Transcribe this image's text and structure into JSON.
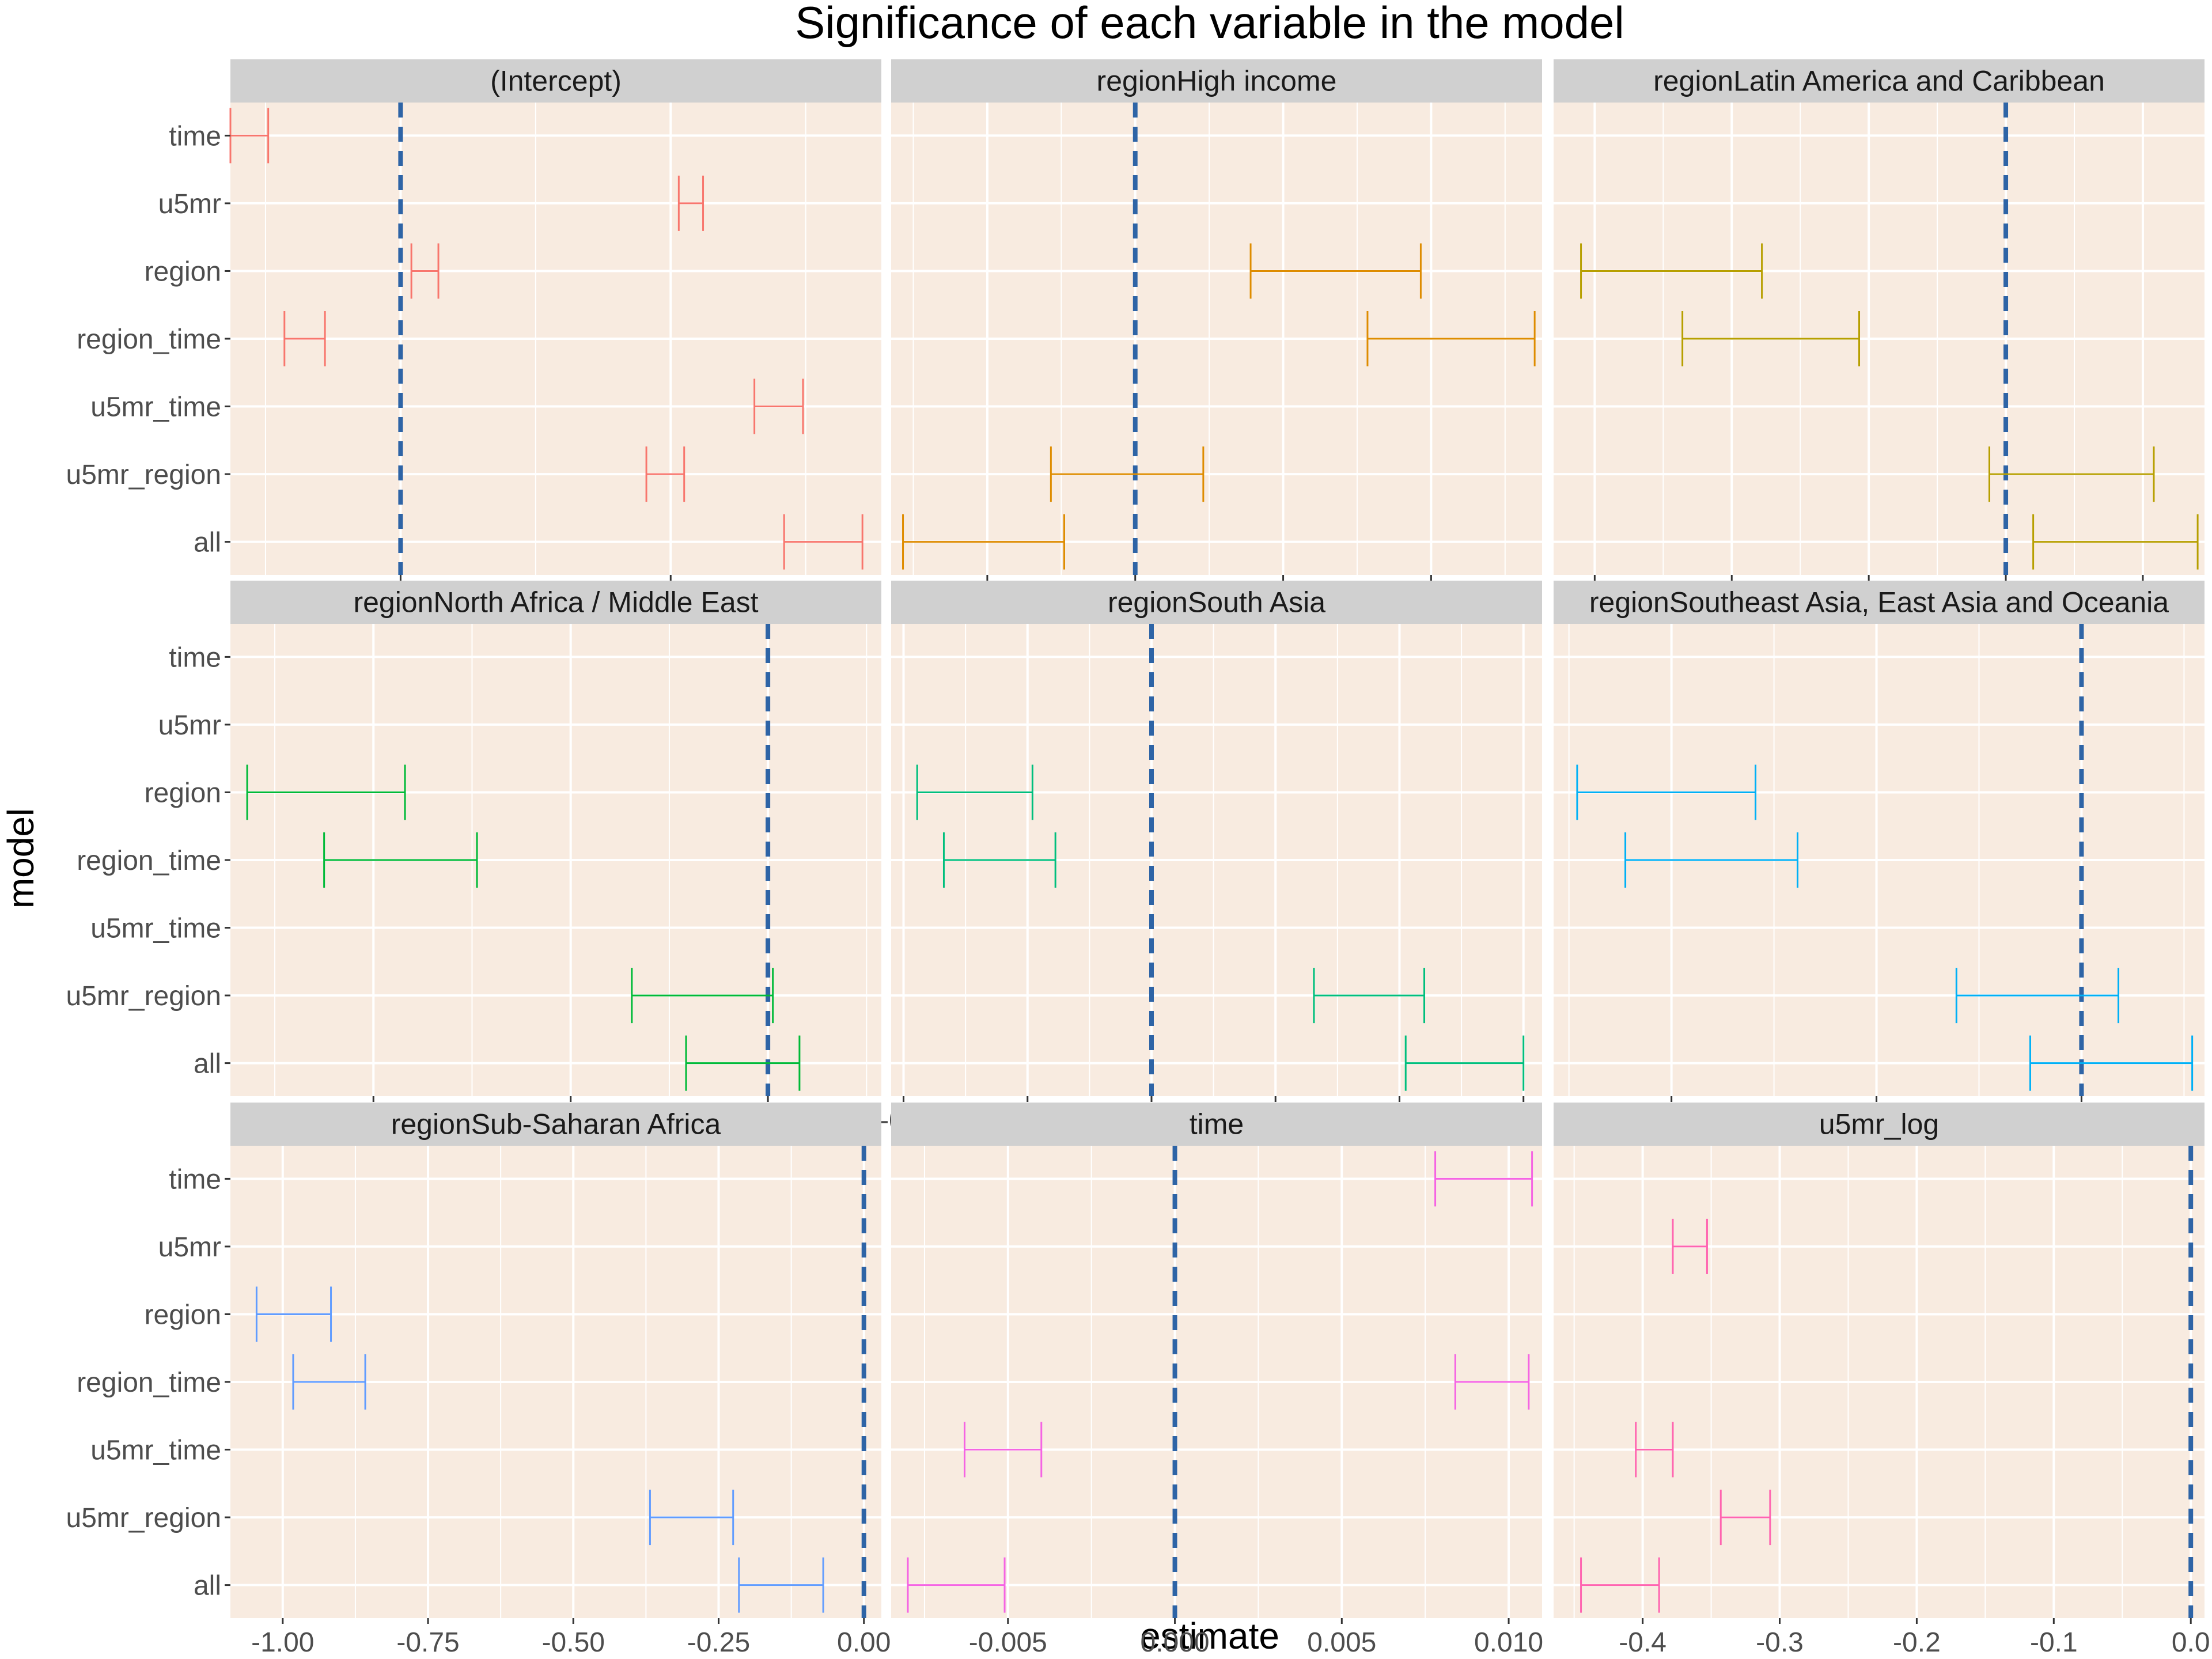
{
  "chart_data": {
    "type": "errorbar-facets",
    "title": "Significance of each variable in the model",
    "xlabel": "estimate",
    "ylabel": "model",
    "models": [
      "time",
      "u5mr",
      "region",
      "region_time",
      "u5mr_time",
      "u5mr_region",
      "all"
    ],
    "reference_line": 0,
    "reference_line_color": "#2E64A6",
    "panel_background": "#F8EBE0",
    "strip_background": "#D0D0D0",
    "grid": true,
    "legend": "none",
    "facets": [
      {
        "name": "(Intercept)",
        "color": "#F8766D",
        "xlim": [
          -0.63,
          1.78
        ],
        "ticks": [
          {
            "v": 0,
            "label": "0"
          },
          {
            "v": 1,
            "label": "1"
          }
        ],
        "bars": [
          {
            "model": "time",
            "low": -0.63,
            "high": -0.49
          },
          {
            "model": "u5mr",
            "low": 1.03,
            "high": 1.12
          },
          {
            "model": "region",
            "low": 0.04,
            "high": 0.14
          },
          {
            "model": "region_time",
            "low": -0.43,
            "high": -0.28
          },
          {
            "model": "u5mr_time",
            "low": 1.31,
            "high": 1.49
          },
          {
            "model": "u5mr_region",
            "low": 0.91,
            "high": 1.05
          },
          {
            "model": "all",
            "low": 1.42,
            "high": 1.71
          }
        ]
      },
      {
        "name": "regionHigh income",
        "color": "#DE8C00",
        "xlim": [
          -0.165,
          0.275
        ],
        "ticks": [
          {
            "v": -0.1,
            "label": "-0.1"
          },
          {
            "v": 0,
            "label": "0.0"
          },
          {
            "v": 0.1,
            "label": "0.1"
          },
          {
            "v": 0.2,
            "label": "0.2"
          }
        ],
        "bars": [
          {
            "model": "region",
            "low": 0.078,
            "high": 0.193
          },
          {
            "model": "region_time",
            "low": 0.157,
            "high": 0.27
          },
          {
            "model": "u5mr_region",
            "low": -0.057,
            "high": 0.046
          },
          {
            "model": "all",
            "low": -0.157,
            "high": -0.048
          }
        ]
      },
      {
        "name": "regionLatin America and Caribbean",
        "color": "#B79F00",
        "xlim": [
          -0.33,
          0.145
        ],
        "ticks": [
          {
            "v": -0.3,
            "label": "-0.3"
          },
          {
            "v": -0.2,
            "label": "-0.2"
          },
          {
            "v": -0.1,
            "label": "-0.1"
          },
          {
            "v": 0,
            "label": "0.0"
          },
          {
            "v": 0.1,
            "label": "0.1"
          }
        ],
        "bars": [
          {
            "model": "region",
            "low": -0.31,
            "high": -0.178
          },
          {
            "model": "region_time",
            "low": -0.236,
            "high": -0.107
          },
          {
            "model": "u5mr_region",
            "low": -0.012,
            "high": 0.108
          },
          {
            "model": "all",
            "low": 0.02,
            "high": 0.14
          }
        ]
      },
      {
        "name": "regionNorth Africa / Middle East",
        "color": "#00BA38",
        "xlim": [
          -0.545,
          0.115
        ],
        "ticks": [
          {
            "v": -0.4,
            "label": "-0.4"
          },
          {
            "v": -0.2,
            "label": "-0.2"
          },
          {
            "v": 0,
            "label": "0.0"
          }
        ],
        "bars": [
          {
            "model": "region",
            "low": -0.528,
            "high": -0.368
          },
          {
            "model": "region_time",
            "low": -0.45,
            "high": -0.295
          },
          {
            "model": "u5mr_region",
            "low": -0.138,
            "high": 0.005
          },
          {
            "model": "all",
            "low": -0.083,
            "high": 0.032
          }
        ]
      },
      {
        "name": "regionSouth Asia",
        "color": "#00BF7D",
        "xlim": [
          -0.42,
          0.63
        ],
        "ticks": [
          {
            "v": -0.4,
            "label": "-0.4"
          },
          {
            "v": -0.2,
            "label": "-0.2"
          },
          {
            "v": 0,
            "label": "0.0"
          },
          {
            "v": 0.2,
            "label": "0.2"
          },
          {
            "v": 0.4,
            "label": "0.4"
          },
          {
            "v": 0.6,
            "label": "0.6"
          }
        ],
        "bars": [
          {
            "model": "region",
            "low": -0.378,
            "high": -0.192
          },
          {
            "model": "region_time",
            "low": -0.335,
            "high": -0.155
          },
          {
            "model": "u5mr_region",
            "low": 0.262,
            "high": 0.44
          },
          {
            "model": "all",
            "low": 0.41,
            "high": 0.6
          }
        ]
      },
      {
        "name": "regionSoutheast Asia, East Asia and Oceania",
        "color": "#00B0F6",
        "xlim": [
          -0.515,
          0.12
        ],
        "ticks": [
          {
            "v": -0.4,
            "label": "-0.4"
          },
          {
            "v": -0.2,
            "label": "-0.2"
          },
          {
            "v": 0,
            "label": "0.0"
          }
        ],
        "bars": [
          {
            "model": "region",
            "low": -0.492,
            "high": -0.318
          },
          {
            "model": "region_time",
            "low": -0.445,
            "high": -0.277
          },
          {
            "model": "u5mr_region",
            "low": -0.122,
            "high": 0.036
          },
          {
            "model": "all",
            "low": -0.05,
            "high": 0.108
          }
        ]
      },
      {
        "name": "regionSub-Saharan Africa",
        "color": "#619CFF",
        "xlim": [
          -1.09,
          0.03
        ],
        "ticks": [
          {
            "v": -1.0,
            "label": "-1.00"
          },
          {
            "v": -0.75,
            "label": "-0.75"
          },
          {
            "v": -0.5,
            "label": "-0.50"
          },
          {
            "v": -0.25,
            "label": "-0.25"
          },
          {
            "v": 0,
            "label": "0.00"
          }
        ],
        "bars": [
          {
            "model": "region",
            "low": -1.045,
            "high": -0.917
          },
          {
            "model": "region_time",
            "low": -0.982,
            "high": -0.858
          },
          {
            "model": "u5mr_region",
            "low": -0.368,
            "high": -0.225
          },
          {
            "model": "all",
            "low": -0.215,
            "high": -0.07
          }
        ]
      },
      {
        "name": "time",
        "color": "#F564E3",
        "xlim": [
          -0.0085,
          0.011
        ],
        "ticks": [
          {
            "v": -0.005,
            "label": "-0.005"
          },
          {
            "v": 0,
            "label": "0.000"
          },
          {
            "v": 0.005,
            "label": "0.005"
          },
          {
            "v": 0.01,
            "label": "0.010"
          }
        ],
        "bars": [
          {
            "model": "time",
            "low": 0.0078,
            "high": 0.0107
          },
          {
            "model": "region_time",
            "low": 0.0084,
            "high": 0.0106
          },
          {
            "model": "u5mr_time",
            "low": -0.0063,
            "high": -0.004
          },
          {
            "model": "all",
            "low": -0.008,
            "high": -0.0051
          }
        ]
      },
      {
        "name": "u5mr_log",
        "color": "#FF64B0",
        "xlim": [
          -0.465,
          0.01
        ],
        "ticks": [
          {
            "v": -0.4,
            "label": "-0.4"
          },
          {
            "v": -0.3,
            "label": "-0.3"
          },
          {
            "v": -0.2,
            "label": "-0.2"
          },
          {
            "v": -0.1,
            "label": "-0.1"
          },
          {
            "v": 0,
            "label": "0.0"
          }
        ],
        "bars": [
          {
            "model": "u5mr",
            "low": -0.378,
            "high": -0.353
          },
          {
            "model": "u5mr_time",
            "low": -0.405,
            "high": -0.378
          },
          {
            "model": "u5mr_region",
            "low": -0.343,
            "high": -0.307
          },
          {
            "model": "all",
            "low": -0.445,
            "high": -0.388
          }
        ]
      }
    ]
  }
}
